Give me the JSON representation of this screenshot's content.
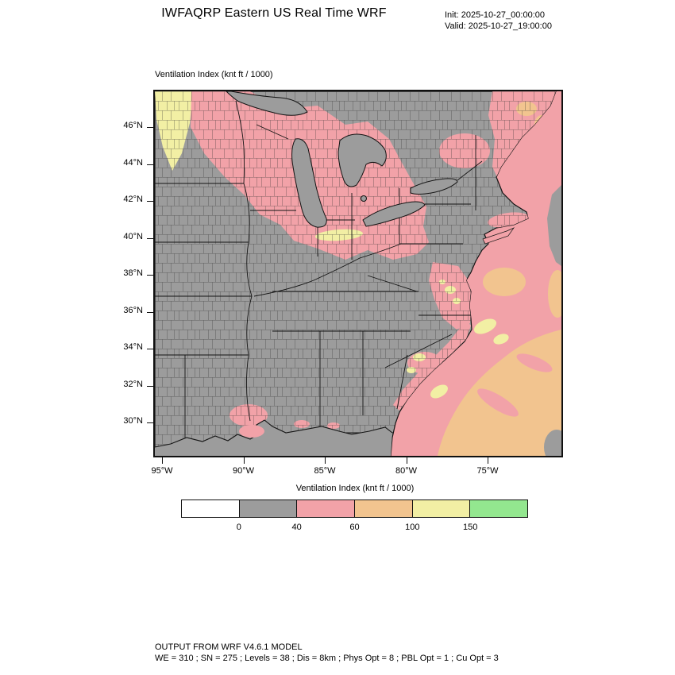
{
  "header": {
    "title": "IWFAQRP Eastern US Real Time WRF",
    "init_label": "Init: 2025-10-27_00:00:00",
    "valid_label": "Valid: 2025-10-27_19:00:00"
  },
  "map": {
    "field_label": "Ventilation Index  (knt ft / 1000)",
    "y_axis_ticks": [
      "46°N",
      "44°N",
      "42°N",
      "40°N",
      "38°N",
      "36°N",
      "34°N",
      "32°N",
      "30°N"
    ],
    "x_axis_ticks": [
      "95°W",
      "90°W",
      "85°W",
      "80°W",
      "75°W"
    ]
  },
  "legend": {
    "title": "Ventilation Index  (knt ft / 1000)",
    "bin_edge_labels": [
      "0",
      "40",
      "60",
      "100",
      "150"
    ],
    "swatch_colors": [
      "#FFFFFF",
      "#9C9C9C",
      "#F2A2A8",
      "#F2C48F",
      "#F2EFA4",
      "#93E78F"
    ]
  },
  "footer": {
    "line1": "OUTPUT FROM WRF V4.6.1 MODEL",
    "line2": "WE = 310 ; SN = 275 ; Levels = 38 ; Dis = 8km ; Phys Opt = 8 ; PBL Opt = 1 ; Cu Opt = 3"
  }
}
